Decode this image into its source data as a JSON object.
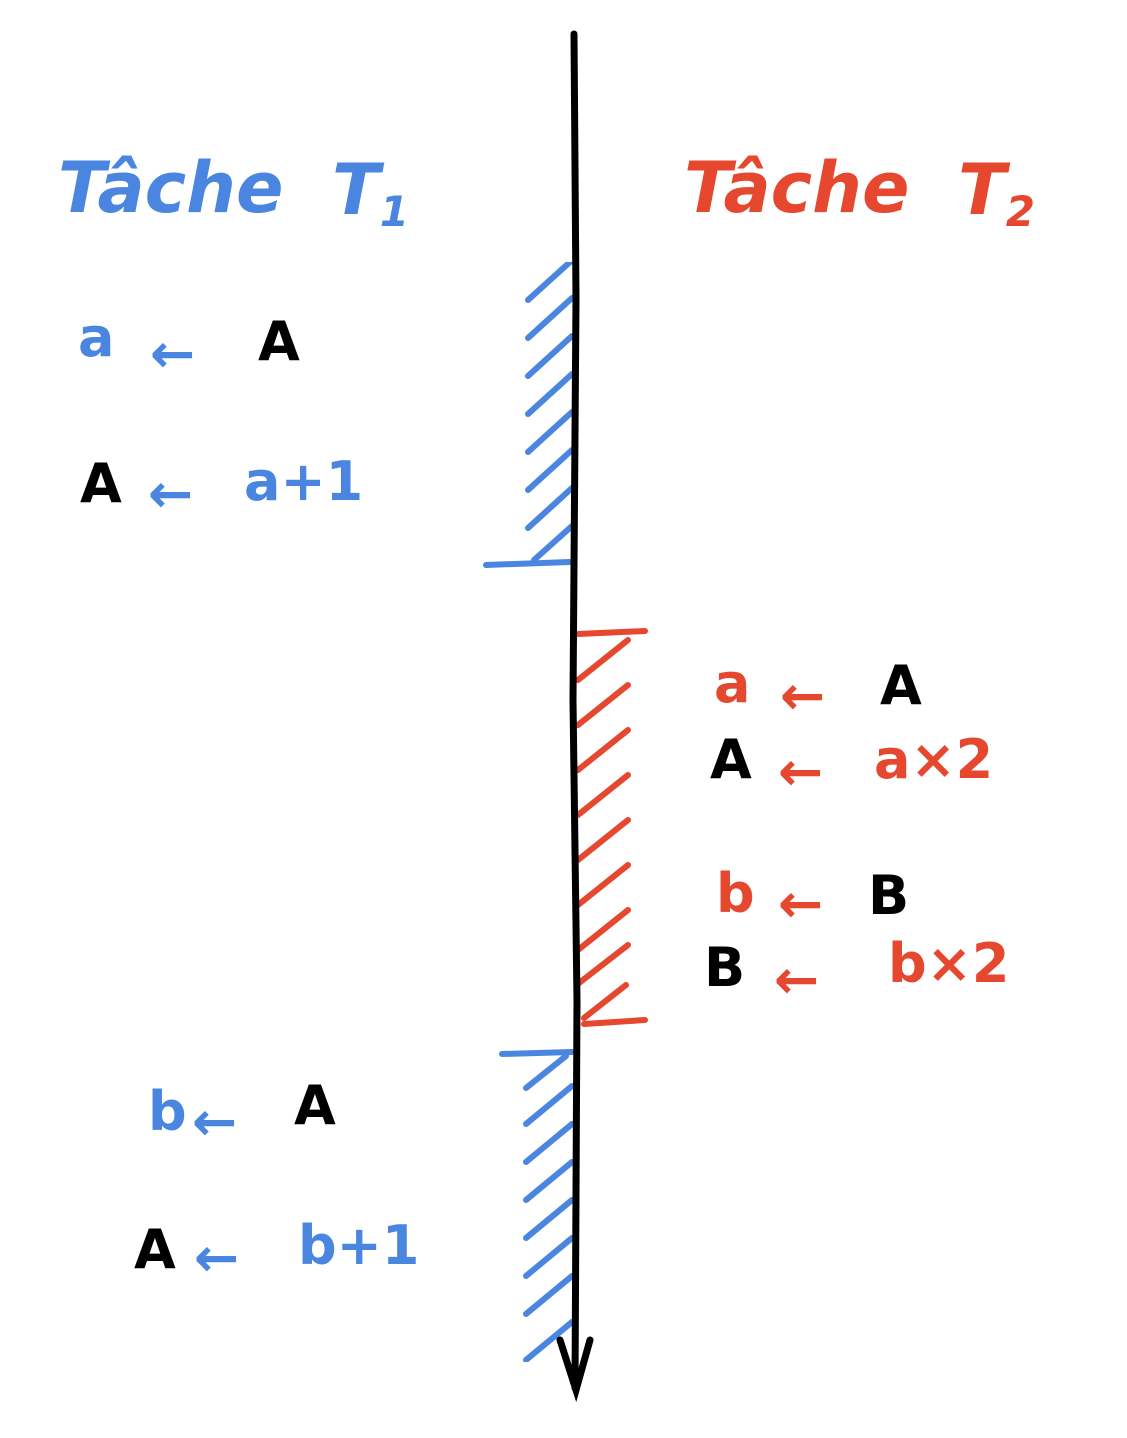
{
  "colors": {
    "task1": "#4a86e0",
    "task2": "#e5472f",
    "shared": "#000000"
  },
  "task1": {
    "title": "Tâche",
    "subscript_letter": "T",
    "subscript_number": "1",
    "statements": [
      {
        "lhs": "a",
        "arrow": "←",
        "rhs": "A"
      },
      {
        "lhs": "A",
        "arrow": "←",
        "rhs": "a+1"
      },
      {
        "lhs": "b",
        "arrow": "←",
        "rhs": "A"
      },
      {
        "lhs": "A",
        "arrow": "←",
        "rhs": "b+1"
      }
    ]
  },
  "task2": {
    "title": "Tâche",
    "subscript_letter": "T",
    "subscript_number": "2",
    "statements": [
      {
        "lhs": "a",
        "arrow": "←",
        "rhs": "A"
      },
      {
        "lhs": "A",
        "arrow": "←",
        "rhs": "a×2"
      },
      {
        "lhs": "b",
        "arrow": "←",
        "rhs": "B"
      },
      {
        "lhs": "B",
        "arrow": "←",
        "rhs": "b×2"
      }
    ]
  }
}
